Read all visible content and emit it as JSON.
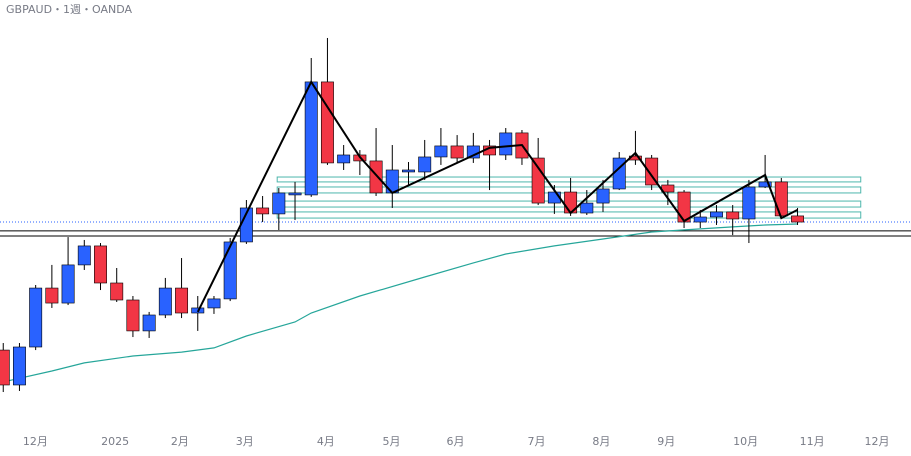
{
  "chart_data": {
    "type": "candlestick",
    "title": "GBPAUD・1週・OANDA",
    "xlim": [
      -0.2,
      56
    ],
    "ylim": [
      1.9539,
      2.2347
    ],
    "grid": false,
    "xticks": [
      {
        "value": 1.98,
        "label": "12月"
      },
      {
        "value": 6.9,
        "label": "2025"
      },
      {
        "value": 10.9,
        "label": "2月"
      },
      {
        "value": 14.9,
        "label": "3月"
      },
      {
        "value": 19.9,
        "label": "4月"
      },
      {
        "value": 23.95,
        "label": "5月"
      },
      {
        "value": 27.9,
        "label": "6月"
      },
      {
        "value": 32.9,
        "label": "7月"
      },
      {
        "value": 36.9,
        "label": "8月"
      },
      {
        "value": 40.9,
        "label": "9月"
      },
      {
        "value": 45.8,
        "label": "10月"
      },
      {
        "value": 49.9,
        "label": "11月"
      },
      {
        "value": 53.9,
        "label": "12月"
      }
    ],
    "up_color": "#2962ff",
    "down_color": "#f23645",
    "open": [
      2.0061,
      1.9833,
      2.0081,
      2.0466,
      2.0368,
      2.0617,
      2.0741,
      2.0499,
      2.0388,
      2.0186,
      2.029,
      2.0466,
      2.0303,
      2.0336,
      2.0395,
      2.0767,
      2.0989,
      2.095,
      2.1074,
      2.1074,
      2.1812,
      2.1283,
      2.1335,
      2.1296,
      2.1087,
      2.1224,
      2.1224,
      2.1322,
      2.1394,
      2.1315,
      2.1394,
      2.1335,
      2.1479,
      2.1315,
      2.1021,
      2.1093,
      2.0956,
      2.1021,
      2.1113,
      2.1328,
      2.1315,
      2.1139,
      2.1093,
      2.0897,
      2.093,
      2.0963,
      2.0917,
      2.1126,
      2.1159,
      2.0937
    ],
    "high": [
      2.0107,
      2.0107,
      2.0486,
      2.0617,
      2.0799,
      2.078,
      2.076,
      2.0597,
      2.0414,
      2.031,
      2.0532,
      2.0662,
      2.0414,
      2.0414,
      2.0793,
      2.1041,
      2.1067,
      2.1119,
      2.1159,
      2.1968,
      2.2099,
      2.14,
      2.1367,
      2.1511,
      2.14,
      2.1289,
      2.1433,
      2.1511,
      2.1465,
      2.1479,
      2.1433,
      2.1511,
      2.1498,
      2.1446,
      2.1139,
      2.1185,
      2.1106,
      2.1172,
      2.1354,
      2.1492,
      2.1335,
      2.1172,
      2.1106,
      2.0976,
      2.1008,
      2.1008,
      2.1172,
      2.1335,
      2.1185,
      2.0989
    ],
    "low": [
      1.9787,
      1.9794,
      2.0061,
      2.0336,
      2.0355,
      2.0584,
      2.0453,
      2.0375,
      2.0146,
      2.014,
      2.027,
      2.027,
      2.0186,
      2.0297,
      2.0381,
      2.0754,
      2.0897,
      2.0845,
      2.091,
      2.1061,
      2.127,
      2.1237,
      2.1204,
      2.1067,
      2.0989,
      2.1139,
      2.1172,
      2.127,
      2.1289,
      2.1283,
      2.1106,
      2.1302,
      2.127,
      2.1008,
      2.095,
      2.0937,
      2.0943,
      2.0963,
      2.1106,
      2.127,
      2.1106,
      2.1008,
      2.0858,
      2.0858,
      2.0878,
      2.0812,
      2.076,
      2.1119,
      2.0923,
      2.0878
    ],
    "close": [
      1.9833,
      2.0081,
      2.0466,
      2.0368,
      2.0617,
      2.0741,
      2.0499,
      2.0388,
      2.0186,
      2.029,
      2.0466,
      2.0303,
      2.0336,
      2.0395,
      2.0767,
      2.0989,
      2.095,
      2.1087,
      2.1087,
      2.1812,
      2.1283,
      2.1335,
      2.1296,
      2.1087,
      2.1237,
      2.1237,
      2.1322,
      2.1394,
      2.1315,
      2.1394,
      2.1335,
      2.1479,
      2.1315,
      2.1021,
      2.1093,
      2.0956,
      2.1021,
      2.1113,
      2.1315,
      2.1302,
      2.1139,
      2.1093,
      2.0897,
      2.093,
      2.0963,
      2.0917,
      2.1126,
      2.1159,
      2.0937,
      2.0897
    ],
    "ma": {
      "color": "#26a69a",
      "x": [
        0,
        3,
        5,
        8,
        11,
        13,
        15,
        18,
        19,
        22,
        26,
        29,
        31,
        34,
        37,
        40,
        43,
        45,
        47,
        49
      ],
      "values": [
        1.9853,
        1.9924,
        1.9977,
        2.0022,
        2.0048,
        2.0075,
        2.0153,
        2.0244,
        2.0303,
        2.0414,
        2.0538,
        2.063,
        2.0688,
        2.0741,
        2.0786,
        2.0832,
        2.0852,
        2.0865,
        2.0878,
        2.0884
      ]
    },
    "zigzag": {
      "color": "#000000",
      "x": [
        12,
        19,
        22,
        24,
        30,
        32,
        35,
        39,
        42,
        47,
        48,
        49
      ],
      "values": [
        2.031,
        2.1812,
        2.1322,
        2.1087,
        2.1381,
        2.14,
        2.0956,
        2.1348,
        2.0904,
        2.1204,
        2.0923,
        2.0976
      ]
    },
    "levels": [
      2.0839,
      2.0806
    ],
    "level_color": "#000000",
    "last_price": 2.0897,
    "zones": {
      "color": "#4db6ac",
      "x": [
        16.9,
        52.9
      ],
      "ranges": [
        [
          2.1159,
          2.1191
        ],
        [
          2.1087,
          2.1126
        ],
        [
          2.0995,
          2.1034
        ],
        [
          2.0923,
          2.0963
        ]
      ]
    }
  }
}
